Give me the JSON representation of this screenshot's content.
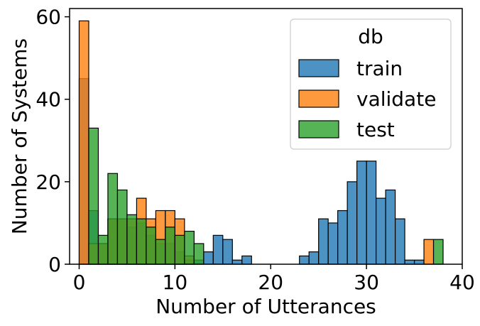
{
  "chart_data": {
    "type": "bar",
    "subtype": "histogram",
    "xlabel": "Number of Utterances",
    "ylabel": "Number of Systems",
    "xlim": [
      -1,
      40
    ],
    "ylim": [
      0,
      62
    ],
    "xticks": [
      0,
      10,
      20,
      30,
      40
    ],
    "yticks": [
      0,
      20,
      40,
      60
    ],
    "grid": false,
    "legend": {
      "title": "db",
      "placement": "top-right"
    },
    "bin_width": 1,
    "series": [
      {
        "name": "train",
        "color": "#1f77b4",
        "bins": [
          {
            "x": 0.5,
            "value": 45
          },
          {
            "x": 1.5,
            "value": 13
          },
          {
            "x": 2.5,
            "value": 5
          },
          {
            "x": 3.5,
            "value": 11
          },
          {
            "x": 4.5,
            "value": 11
          },
          {
            "x": 5.5,
            "value": 9
          },
          {
            "x": 6.5,
            "value": 10
          },
          {
            "x": 7.5,
            "value": 7
          },
          {
            "x": 8.5,
            "value": 5
          },
          {
            "x": 9.5,
            "value": 5
          },
          {
            "x": 10.5,
            "value": 3
          },
          {
            "x": 11.5,
            "value": 1
          },
          {
            "x": 12.5,
            "value": 1
          },
          {
            "x": 13.5,
            "value": 3
          },
          {
            "x": 14.5,
            "value": 7
          },
          {
            "x": 15.5,
            "value": 6
          },
          {
            "x": 16.5,
            "value": 1
          },
          {
            "x": 17.5,
            "value": 2
          },
          {
            "x": 23.5,
            "value": 2
          },
          {
            "x": 24.5,
            "value": 3
          },
          {
            "x": 25.5,
            "value": 11
          },
          {
            "x": 26.5,
            "value": 10
          },
          {
            "x": 27.5,
            "value": 13
          },
          {
            "x": 28.5,
            "value": 20
          },
          {
            "x": 29.5,
            "value": 25
          },
          {
            "x": 30.5,
            "value": 25
          },
          {
            "x": 31.5,
            "value": 16
          },
          {
            "x": 32.5,
            "value": 18
          },
          {
            "x": 33.5,
            "value": 11
          },
          {
            "x": 34.5,
            "value": 1
          },
          {
            "x": 35.5,
            "value": 1
          }
        ]
      },
      {
        "name": "validate",
        "color": "#ff7f0e",
        "bins": [
          {
            "x": 0.5,
            "value": 59
          },
          {
            "x": 1.5,
            "value": 5
          },
          {
            "x": 2.5,
            "value": 5
          },
          {
            "x": 3.5,
            "value": 11
          },
          {
            "x": 4.5,
            "value": 11
          },
          {
            "x": 5.5,
            "value": 11
          },
          {
            "x": 6.5,
            "value": 16
          },
          {
            "x": 7.5,
            "value": 11
          },
          {
            "x": 8.5,
            "value": 13
          },
          {
            "x": 9.5,
            "value": 13
          },
          {
            "x": 10.5,
            "value": 11
          },
          {
            "x": 11.5,
            "value": 2
          },
          {
            "x": 36.5,
            "value": 6
          }
        ]
      },
      {
        "name": "test",
        "color": "#2ca02c",
        "bins": [
          {
            "x": 1.5,
            "value": 33
          },
          {
            "x": 2.5,
            "value": 7
          },
          {
            "x": 3.5,
            "value": 22
          },
          {
            "x": 4.5,
            "value": 18
          },
          {
            "x": 5.5,
            "value": 12
          },
          {
            "x": 6.5,
            "value": 11
          },
          {
            "x": 7.5,
            "value": 9
          },
          {
            "x": 8.5,
            "value": 6
          },
          {
            "x": 9.5,
            "value": 9
          },
          {
            "x": 10.5,
            "value": 7
          },
          {
            "x": 11.5,
            "value": 8
          },
          {
            "x": 12.5,
            "value": 5
          },
          {
            "x": 37.5,
            "value": 6
          }
        ]
      }
    ]
  }
}
